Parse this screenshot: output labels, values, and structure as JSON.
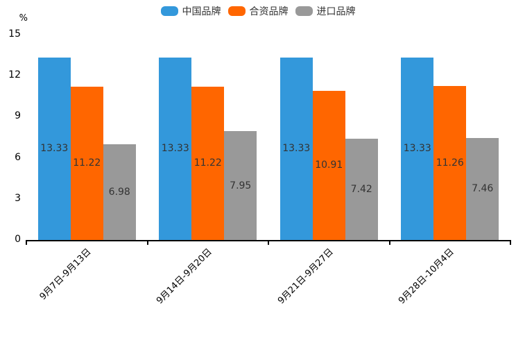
{
  "chart_data": {
    "type": "bar",
    "title": "",
    "ylabel": "%",
    "xlabel": "",
    "categories": [
      "9月7日-9月13日",
      "9月14日-9月20日",
      "9月21日-9月27日",
      "9月28日-10月4日"
    ],
    "series": [
      {
        "name": "中国品牌",
        "color": "#3398DB",
        "values": [
          13.33,
          13.33,
          13.33,
          13.33
        ]
      },
      {
        "name": "合资品牌",
        "color": "#FF6600",
        "values": [
          11.22,
          11.22,
          10.91,
          11.26
        ]
      },
      {
        "name": "进口品牌",
        "color": "#999999",
        "values": [
          6.98,
          7.95,
          7.42,
          7.46
        ]
      }
    ],
    "ylim": [
      0,
      15
    ],
    "yticks": [
      0,
      3,
      6,
      9,
      12,
      15
    ],
    "grid": false,
    "legend_position": "top",
    "value_labels_shown": true,
    "value_label_color": "#333333",
    "axis_color": "#000000",
    "background_color": "#FFFFFF"
  }
}
